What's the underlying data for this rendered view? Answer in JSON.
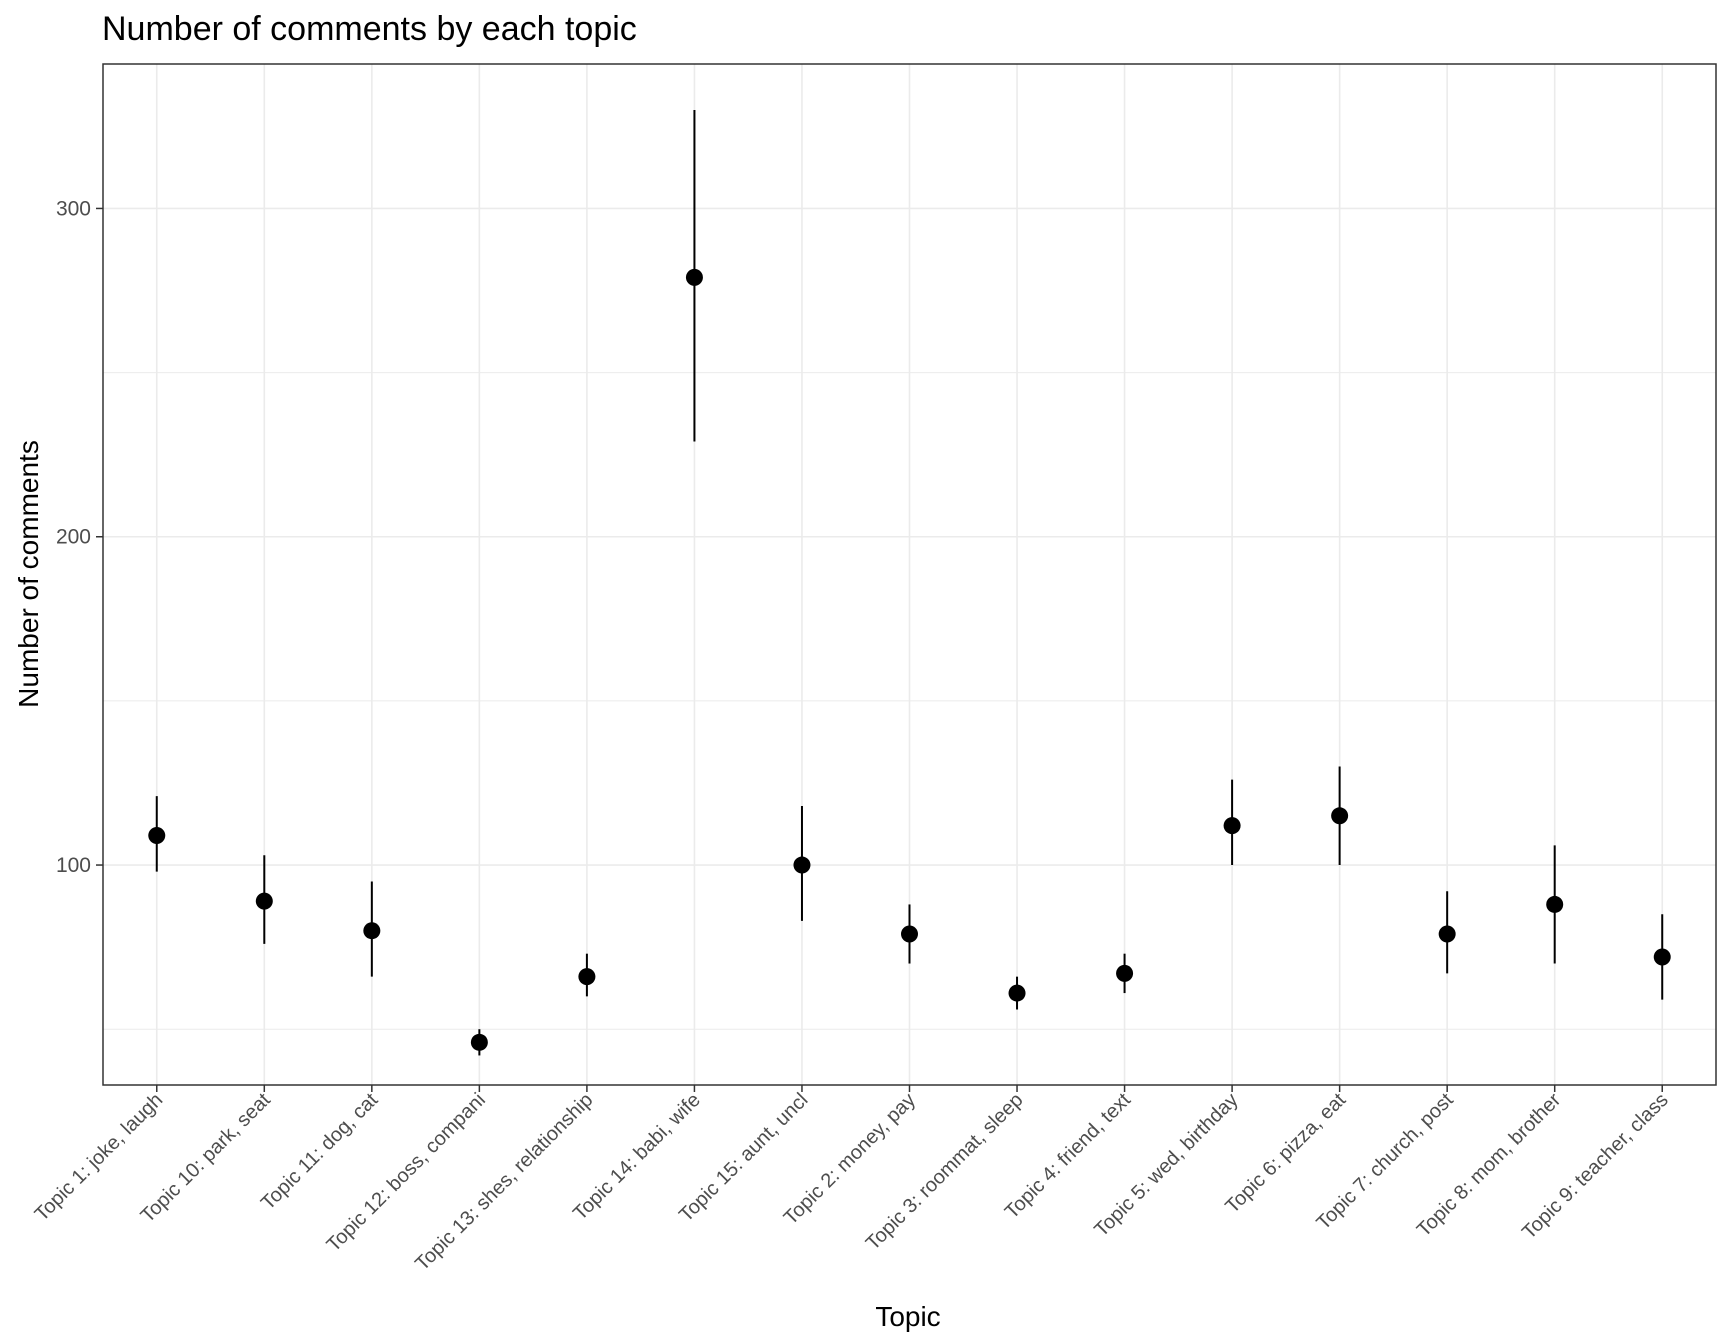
{
  "chart_data": {
    "type": "pointrange",
    "title": "Number of comments by each topic",
    "xlabel": "Topic",
    "ylabel": "Number of comments",
    "ylim": [
      33,
      344
    ],
    "yticks": [
      100,
      200,
      300
    ],
    "grid": true,
    "legend": "none",
    "categories": [
      "Topic 1: joke, laugh",
      "Topic 10: park, seat",
      "Topic 11: dog, cat",
      "Topic 12: boss, compani",
      "Topic 13: shes, relationship",
      "Topic 14: babi, wife",
      "Topic 15: aunt, uncl",
      "Topic 2: money, pay",
      "Topic 3: roommat, sleep",
      "Topic 4: friend, text",
      "Topic 5: wed, birthday",
      "Topic 6: pizza, eat",
      "Topic 7: church, post",
      "Topic 8: mom, brother",
      "Topic 9: teacher, class"
    ],
    "values": [
      109,
      89,
      80,
      46,
      66,
      279,
      100,
      79,
      61,
      67,
      112,
      115,
      79,
      88,
      72
    ],
    "lower": [
      98,
      76,
      66,
      42,
      60,
      229,
      83,
      70,
      56,
      61,
      100,
      100,
      67,
      70,
      59
    ],
    "upper": [
      121,
      103,
      95,
      50,
      73,
      330,
      118,
      88,
      66,
      73,
      126,
      130,
      92,
      106,
      85
    ],
    "colors": {
      "point": "#000000",
      "grid": "#ebebeb",
      "border": "#333333"
    }
  }
}
